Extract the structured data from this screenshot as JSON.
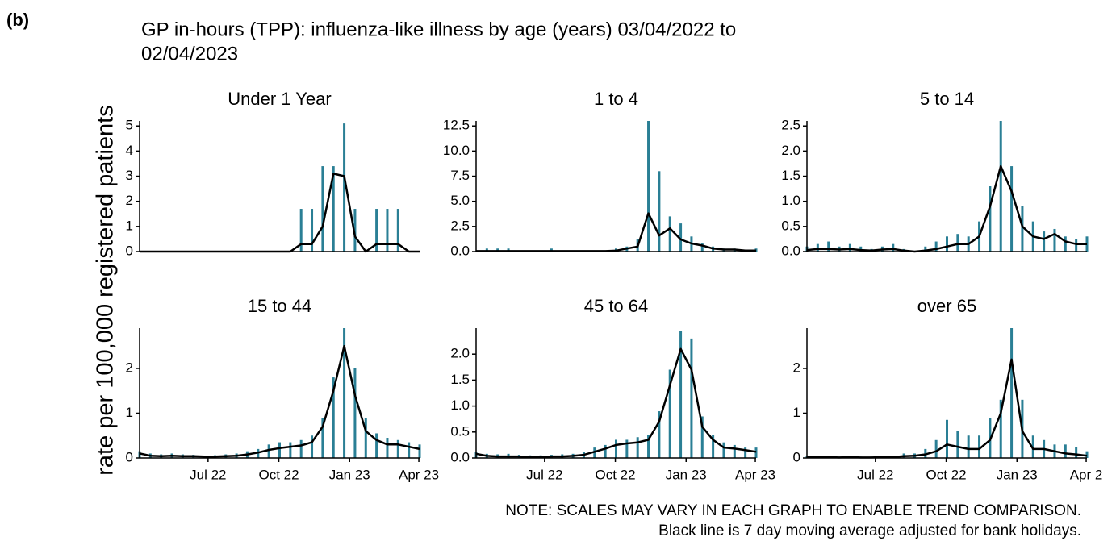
{
  "label": "(b)",
  "title_lines": [
    "GP in-hours (TPP): influenza-like illness by age (years) 03/04/2022 to",
    "02/04/2023"
  ],
  "y_label": "rate per 100,000 registered patients",
  "notes": [
    "NOTE: SCALES MAY VARY IN EACH GRAPH TO ENABLE TREND COMPARISON.",
    "Black line is 7 day moving average adjusted for bank holidays."
  ],
  "chart_data": [
    {
      "type": "bar",
      "title": "Under 1 Year",
      "x": [
        0,
        14,
        28,
        42,
        56,
        70,
        84,
        98,
        112,
        126,
        140,
        154,
        168,
        182,
        196,
        210,
        224,
        238,
        252,
        266,
        280,
        294,
        308,
        322,
        336,
        350,
        364
      ],
      "xlim": [
        0,
        364
      ],
      "ylim": [
        0,
        5.2
      ],
      "yticks": [
        0,
        1,
        2,
        3,
        4,
        5
      ],
      "series": [
        {
          "type": "bar",
          "color": "#2a7f95",
          "values": [
            0,
            0,
            0,
            0,
            0,
            0,
            0,
            0,
            0,
            0,
            0,
            0,
            0,
            0,
            0,
            1.7,
            1.7,
            3.4,
            3.4,
            5.1,
            1.7,
            0,
            1.7,
            1.7,
            1.7,
            0,
            0
          ]
        },
        {
          "type": "line",
          "color": "#000000",
          "values": [
            0,
            0,
            0,
            0,
            0,
            0,
            0,
            0,
            0,
            0,
            0,
            0,
            0,
            0,
            0,
            0.3,
            0.3,
            1.0,
            3.1,
            3.0,
            0.6,
            0,
            0.3,
            0.3,
            0.3,
            0,
            0
          ]
        }
      ]
    },
    {
      "type": "bar",
      "title": "1 to 4",
      "x": [
        0,
        14,
        28,
        42,
        56,
        70,
        84,
        98,
        112,
        126,
        140,
        154,
        168,
        182,
        196,
        210,
        224,
        238,
        252,
        266,
        280,
        294,
        308,
        322,
        336,
        350,
        364
      ],
      "xlim": [
        0,
        364
      ],
      "ylim": [
        0,
        13
      ],
      "yticks": [
        {
          "value": 0,
          "label": "0.0"
        },
        2.5,
        {
          "value": 5,
          "label": "5.0"
        },
        7.5,
        {
          "value": 10,
          "label": "10.0"
        },
        12.5
      ],
      "series": [
        {
          "type": "bar",
          "color": "#2a7f95",
          "values": [
            0,
            0.3,
            0.3,
            0.3,
            0,
            0,
            0,
            0.3,
            0,
            0,
            0,
            0,
            0,
            0.3,
            0.5,
            1.2,
            13,
            8,
            3.5,
            2.8,
            1.5,
            0.8,
            0.5,
            0.3,
            0.3,
            0.2,
            0.3
          ]
        },
        {
          "type": "line",
          "color": "#000000",
          "values": [
            0.05,
            0.05,
            0.05,
            0.05,
            0.05,
            0.05,
            0.05,
            0.05,
            0.05,
            0.05,
            0.05,
            0.05,
            0.05,
            0.1,
            0.3,
            0.5,
            3.8,
            1.6,
            2.3,
            1.2,
            0.8,
            0.6,
            0.3,
            0.2,
            0.2,
            0.1,
            0.1
          ]
        }
      ]
    },
    {
      "type": "bar",
      "title": "5 to 14",
      "x": [
        0,
        14,
        28,
        42,
        56,
        70,
        84,
        98,
        112,
        126,
        140,
        154,
        168,
        182,
        196,
        210,
        224,
        238,
        252,
        266,
        280,
        294,
        308,
        322,
        336,
        350,
        364
      ],
      "xlim": [
        0,
        364
      ],
      "ylim": [
        0,
        2.6
      ],
      "yticks": [
        {
          "value": 0,
          "label": "0.0"
        },
        0.5,
        {
          "value": 1,
          "label": "1.0"
        },
        1.5,
        {
          "value": 2,
          "label": "2.0"
        },
        2.5
      ],
      "series": [
        {
          "type": "bar",
          "color": "#2a7f95",
          "values": [
            0.1,
            0.15,
            0.2,
            0.1,
            0.15,
            0.1,
            0.05,
            0.1,
            0.15,
            0.05,
            0,
            0.1,
            0.2,
            0.3,
            0.35,
            0.3,
            0.6,
            1.3,
            2.6,
            1.7,
            0.9,
            0.6,
            0.4,
            0.45,
            0.3,
            0.25,
            0.3
          ]
        },
        {
          "type": "line",
          "color": "#000000",
          "values": [
            0.03,
            0.05,
            0.05,
            0.04,
            0.05,
            0.03,
            0.02,
            0.04,
            0.05,
            0.02,
            0,
            0.02,
            0.05,
            0.1,
            0.15,
            0.15,
            0.3,
            0.9,
            1.7,
            1.2,
            0.5,
            0.3,
            0.25,
            0.35,
            0.2,
            0.15,
            0.15
          ]
        }
      ]
    },
    {
      "type": "bar",
      "title": "15 to 44",
      "x": [
        0,
        14,
        28,
        42,
        56,
        70,
        84,
        98,
        112,
        126,
        140,
        154,
        168,
        182,
        196,
        210,
        224,
        238,
        252,
        266,
        280,
        294,
        308,
        322,
        336,
        350,
        364
      ],
      "xlim": [
        0,
        364
      ],
      "ylim": [
        0,
        2.9
      ],
      "yticks": [
        0,
        1,
        2
      ],
      "xticks": [
        {
          "value": 89,
          "label": "Jul 22"
        },
        {
          "value": 181,
          "label": "Oct 22"
        },
        {
          "value": 273,
          "label": "Jan 23"
        },
        {
          "value": 363,
          "label": "Apr 23"
        }
      ],
      "series": [
        {
          "type": "bar",
          "color": "#2a7f95",
          "values": [
            0.15,
            0.1,
            0.08,
            0.1,
            0.08,
            0.07,
            0.05,
            0.06,
            0.08,
            0.1,
            0.15,
            0.2,
            0.3,
            0.35,
            0.35,
            0.4,
            0.5,
            0.9,
            1.8,
            2.9,
            2.0,
            0.9,
            0.55,
            0.45,
            0.4,
            0.35,
            0.3
          ]
        },
        {
          "type": "line",
          "color": "#000000",
          "values": [
            0.1,
            0.05,
            0.04,
            0.05,
            0.04,
            0.04,
            0.03,
            0.03,
            0.04,
            0.05,
            0.08,
            0.12,
            0.18,
            0.22,
            0.25,
            0.28,
            0.35,
            0.7,
            1.5,
            2.5,
            1.4,
            0.6,
            0.4,
            0.3,
            0.3,
            0.25,
            0.2
          ]
        }
      ]
    },
    {
      "type": "bar",
      "title": "45 to 64",
      "x": [
        0,
        14,
        28,
        42,
        56,
        70,
        84,
        98,
        112,
        126,
        140,
        154,
        168,
        182,
        196,
        210,
        224,
        238,
        252,
        266,
        280,
        294,
        308,
        322,
        336,
        350,
        364
      ],
      "xlim": [
        0,
        364
      ],
      "ylim": [
        0,
        2.5
      ],
      "yticks": [
        {
          "value": 0,
          "label": "0.0"
        },
        0.5,
        {
          "value": 1,
          "label": "1.0"
        },
        1.5,
        {
          "value": 2,
          "label": "2.0"
        }
      ],
      "xticks": [
        {
          "value": 89,
          "label": "Jul 22"
        },
        {
          "value": 181,
          "label": "Oct 22"
        },
        {
          "value": 273,
          "label": "Jan 23"
        },
        {
          "value": 363,
          "label": "Apr 23"
        }
      ],
      "series": [
        {
          "type": "bar",
          "color": "#2a7f95",
          "values": [
            0.12,
            0.08,
            0.07,
            0.08,
            0.06,
            0.05,
            0.05,
            0.06,
            0.07,
            0.08,
            0.12,
            0.2,
            0.25,
            0.35,
            0.35,
            0.4,
            0.45,
            0.9,
            1.7,
            2.45,
            2.3,
            0.8,
            0.45,
            0.3,
            0.25,
            0.2,
            0.2
          ]
        },
        {
          "type": "line",
          "color": "#000000",
          "values": [
            0.08,
            0.04,
            0.03,
            0.03,
            0.03,
            0.02,
            0.02,
            0.03,
            0.03,
            0.04,
            0.06,
            0.12,
            0.18,
            0.25,
            0.28,
            0.3,
            0.35,
            0.7,
            1.4,
            2.1,
            1.7,
            0.6,
            0.35,
            0.2,
            0.18,
            0.15,
            0.12
          ]
        }
      ]
    },
    {
      "type": "bar",
      "title": "over 65",
      "x": [
        0,
        14,
        28,
        42,
        56,
        70,
        84,
        98,
        112,
        126,
        140,
        154,
        168,
        182,
        196,
        210,
        224,
        238,
        252,
        266,
        280,
        294,
        308,
        322,
        336,
        350,
        364
      ],
      "xlim": [
        0,
        364
      ],
      "ylim": [
        0,
        2.9
      ],
      "yticks": [
        0,
        1,
        2
      ],
      "xticks": [
        {
          "value": 89,
          "label": "Jul 22"
        },
        {
          "value": 181,
          "label": "Oct 22"
        },
        {
          "value": 273,
          "label": "Jan 23"
        },
        {
          "value": 363,
          "label": "Apr 2"
        }
      ],
      "series": [
        {
          "type": "bar",
          "color": "#2a7f95",
          "values": [
            0.05,
            0.04,
            0.05,
            0.03,
            0.04,
            0.03,
            0.03,
            0.05,
            0.04,
            0.1,
            0.1,
            0.2,
            0.4,
            0.85,
            0.6,
            0.5,
            0.5,
            0.9,
            1.3,
            2.9,
            1.3,
            0.5,
            0.4,
            0.3,
            0.3,
            0.25,
            0.15
          ]
        },
        {
          "type": "line",
          "color": "#000000",
          "values": [
            0.02,
            0.02,
            0.02,
            0.01,
            0.02,
            0.01,
            0.01,
            0.02,
            0.02,
            0.04,
            0.05,
            0.08,
            0.15,
            0.3,
            0.25,
            0.2,
            0.2,
            0.4,
            1.0,
            2.2,
            0.6,
            0.2,
            0.2,
            0.15,
            0.1,
            0.08,
            0.05
          ]
        }
      ]
    }
  ]
}
